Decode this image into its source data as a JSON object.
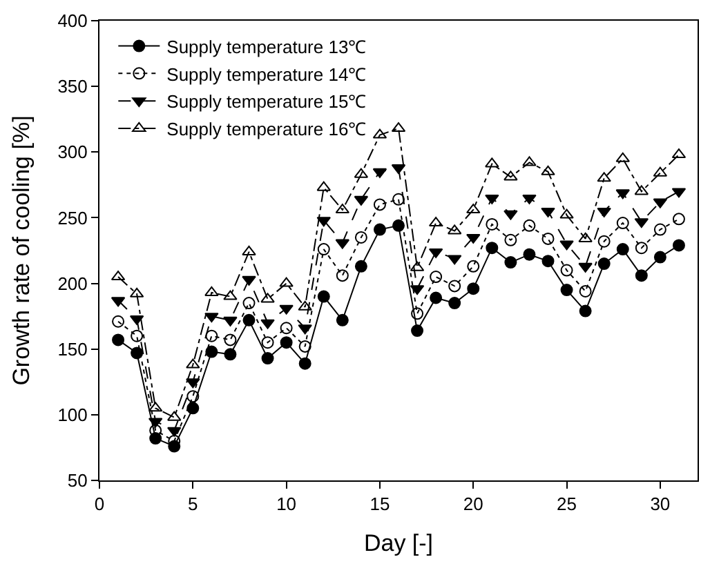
{
  "chart_data": {
    "type": "line",
    "xlabel": "Day [-]",
    "ylabel": "Growth rate of cooling [%]",
    "x": [
      1,
      2,
      3,
      4,
      5,
      6,
      7,
      8,
      9,
      10,
      11,
      12,
      13,
      14,
      15,
      16,
      17,
      18,
      19,
      20,
      21,
      22,
      23,
      24,
      25,
      26,
      27,
      28,
      29,
      30,
      31
    ],
    "xlim": [
      0,
      32
    ],
    "xticks": [
      0,
      5,
      10,
      15,
      20,
      25,
      30
    ],
    "ylim": [
      50,
      400
    ],
    "yticks": [
      50,
      100,
      150,
      200,
      250,
      300,
      350,
      400
    ],
    "legend": "top left",
    "series": [
      {
        "name": "Supply temperature 13℃",
        "color": "#000000",
        "marker": "circle",
        "line_style": "solid",
        "values": [
          157,
          147,
          82,
          76,
          105,
          148,
          146,
          172,
          143,
          155,
          139,
          190,
          172,
          213,
          241,
          244,
          164,
          189,
          185,
          196,
          227,
          216,
          222,
          217,
          195,
          179,
          215,
          226,
          206,
          220,
          229
        ]
      },
      {
        "name": "Supply temperature 14℃",
        "color": "#000000",
        "marker": "circle-open",
        "line_style": "dotted",
        "values": [
          171,
          160,
          88,
          80,
          114,
          160,
          157,
          185,
          155,
          166,
          152,
          226,
          206,
          235,
          260,
          264,
          177,
          205,
          198,
          213,
          245,
          233,
          244,
          234,
          210,
          194,
          232,
          246,
          227,
          241,
          249
        ]
      },
      {
        "name": "Supply temperature 15℃",
        "color": "#000000",
        "marker": "triangle-down",
        "line_style": "dashed",
        "values": [
          187,
          173,
          95,
          88,
          125,
          175,
          172,
          203,
          170,
          181,
          166,
          248,
          231,
          264,
          285,
          288,
          196,
          224,
          219,
          235,
          265,
          253,
          265,
          255,
          230,
          213,
          255,
          269,
          247,
          262,
          270
        ]
      },
      {
        "name": "Supply temperature 16℃",
        "color": "#000000",
        "marker": "triangle-open",
        "line_style": "dashdot",
        "values": [
          205,
          192,
          105,
          98,
          138,
          193,
          190,
          224,
          188,
          200,
          182,
          273,
          256,
          283,
          313,
          318,
          212,
          246,
          240,
          256,
          291,
          281,
          292,
          285,
          252,
          234,
          280,
          295,
          270,
          284,
          298
        ]
      }
    ]
  }
}
